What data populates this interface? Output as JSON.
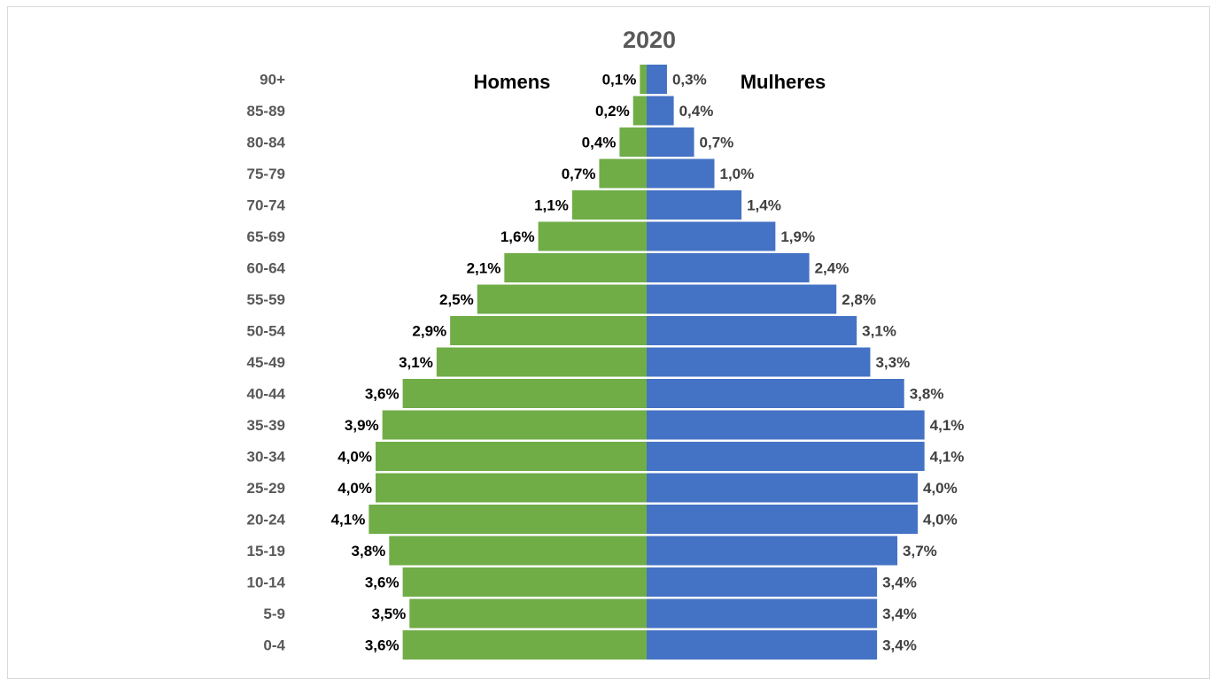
{
  "chart_data": {
    "type": "bar",
    "orientation": "horizontal-butterfly",
    "title": "2020",
    "categories": [
      "90+",
      "85-89",
      "80-84",
      "75-79",
      "70-74",
      "65-69",
      "60-64",
      "55-59",
      "50-54",
      "45-49",
      "40-44",
      "35-39",
      "30-34",
      "25-29",
      "20-24",
      "15-19",
      "10-14",
      "5-9",
      "0-4"
    ],
    "series": [
      {
        "name": "Homens",
        "color": "#70ad47",
        "side": "left",
        "values": [
          0.1,
          0.2,
          0.4,
          0.7,
          1.1,
          1.6,
          2.1,
          2.5,
          2.9,
          3.1,
          3.6,
          3.9,
          4.0,
          4.0,
          4.1,
          3.8,
          3.6,
          3.5,
          3.6
        ],
        "labels": [
          "0,1%",
          "0,2%",
          "0,4%",
          "0,7%",
          "1,1%",
          "1,6%",
          "2,1%",
          "2,5%",
          "2,9%",
          "3,1%",
          "3,6%",
          "3,9%",
          "4,0%",
          "4,0%",
          "4,1%",
          "3,8%",
          "3,6%",
          "3,5%",
          "3,6%"
        ]
      },
      {
        "name": "Mulheres",
        "color": "#4472c4",
        "side": "right",
        "values": [
          0.3,
          0.4,
          0.7,
          1.0,
          1.4,
          1.9,
          2.4,
          2.8,
          3.1,
          3.3,
          3.8,
          4.1,
          4.1,
          4.0,
          4.0,
          3.7,
          3.4,
          3.4,
          3.4
        ],
        "labels": [
          "0,3%",
          "0,4%",
          "0,7%",
          "1,0%",
          "1,4%",
          "1,9%",
          "2,4%",
          "2,8%",
          "3,1%",
          "3,3%",
          "3,8%",
          "4,1%",
          "4,1%",
          "4,0%",
          "4,0%",
          "3,7%",
          "3,4%",
          "3,4%",
          "3,4%"
        ]
      }
    ],
    "unit": "%",
    "grid": false,
    "legend": "none",
    "xlim": [
      -4.1,
      4.1
    ]
  }
}
